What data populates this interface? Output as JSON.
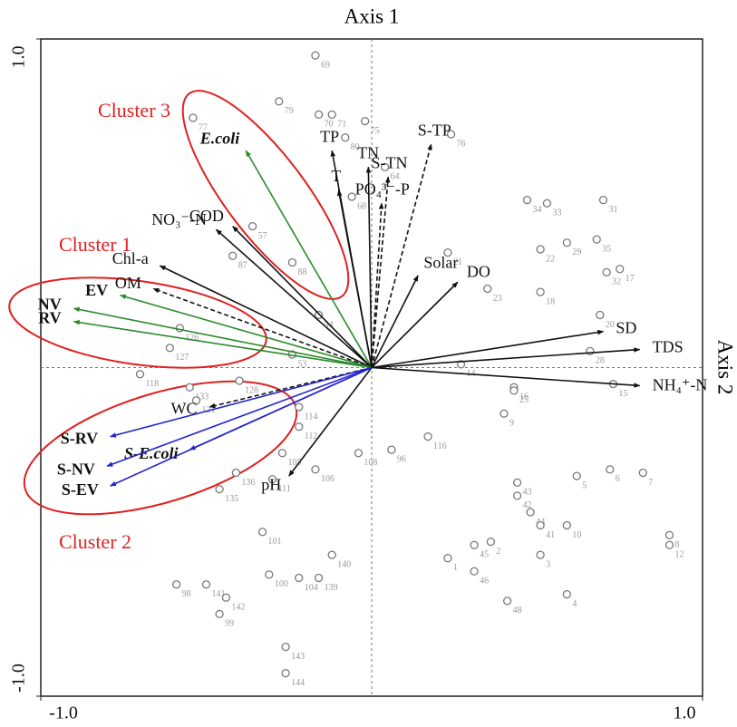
{
  "chart_data": {
    "type": "biplot",
    "x_axis_label": "Axis 1",
    "y_axis_label": "Axis 2",
    "xlim": [
      -1,
      1
    ],
    "ylim": [
      -1,
      1
    ],
    "xticks": [
      {
        "value": -1,
        "label": "-1.0"
      },
      {
        "value": 1,
        "label": "1.0"
      }
    ],
    "yticks": [
      {
        "value": -1,
        "label": "-1.0"
      },
      {
        "value": 1,
        "label": "1.0"
      }
    ],
    "clusters": [
      {
        "name": "Cluster 3",
        "color": "#e02020"
      },
      {
        "name": "Cluster 1",
        "color": "#e02020"
      },
      {
        "name": "Cluster 2",
        "color": "#e02020"
      }
    ],
    "vectors": [
      {
        "name": "E.coli",
        "x": -0.38,
        "y": 0.66,
        "color": "#2a8a2a",
        "weight": "bold-italic"
      },
      {
        "name": "COD",
        "x": -0.42,
        "y": 0.43,
        "color": "#111111"
      },
      {
        "name": "NO₃⁻-N",
        "x": -0.47,
        "y": 0.42,
        "color": "#111111"
      },
      {
        "name": "Chl-a",
        "x": -0.64,
        "y": 0.31,
        "color": "#111111"
      },
      {
        "name": "OM",
        "x": -0.66,
        "y": 0.24,
        "color": "#111111",
        "dashed": true
      },
      {
        "name": "EV",
        "x": -0.76,
        "y": 0.22,
        "color": "#2a8a2a",
        "weight": "bold"
      },
      {
        "name": "NV",
        "x": -0.9,
        "y": 0.18,
        "color": "#2a8a2a",
        "weight": "bold"
      },
      {
        "name": "RV",
        "x": -0.9,
        "y": 0.14,
        "color": "#2a8a2a",
        "weight": "bold"
      },
      {
        "name": "TP",
        "x": -0.12,
        "y": 0.66,
        "color": "#111111"
      },
      {
        "name": "T",
        "x": -0.1,
        "y": 0.54,
        "color": "#111111"
      },
      {
        "name": "TN",
        "x": -0.01,
        "y": 0.61,
        "color": "#111111"
      },
      {
        "name": "S-TN",
        "x": 0.05,
        "y": 0.58,
        "color": "#111111",
        "dashed": true
      },
      {
        "name": "S-TP",
        "x": 0.18,
        "y": 0.68,
        "color": "#111111",
        "dashed": true
      },
      {
        "name": "PO₄³⁻-P",
        "x": 0.03,
        "y": 0.5,
        "color": "#111111",
        "dashed": true
      },
      {
        "name": "Solar",
        "x": 0.14,
        "y": 0.28,
        "color": "#111111"
      },
      {
        "name": "DO",
        "x": 0.26,
        "y": 0.26,
        "color": "#111111"
      },
      {
        "name": "SD",
        "x": 0.7,
        "y": 0.11,
        "color": "#111111"
      },
      {
        "name": "TDS",
        "x": 0.81,
        "y": 0.055,
        "color": "#111111"
      },
      {
        "name": "NH₄⁺-N",
        "x": 0.81,
        "y": -0.055,
        "color": "#111111"
      },
      {
        "name": "WC",
        "x": -0.49,
        "y": -0.12,
        "color": "#111111",
        "dashed": true
      },
      {
        "name": "pH",
        "x": -0.25,
        "y": -0.33,
        "color": "#111111"
      },
      {
        "name": "S-E.coli",
        "x": -0.55,
        "y": -0.25,
        "color": "#2323d0",
        "weight": "bold-italic"
      },
      {
        "name": "S-RV",
        "x": -0.79,
        "y": -0.21,
        "color": "#2323d0",
        "weight": "bold"
      },
      {
        "name": "S-NV",
        "x": -0.8,
        "y": -0.3,
        "color": "#2323d0",
        "weight": "bold"
      },
      {
        "name": "S-EV",
        "x": -0.79,
        "y": -0.36,
        "color": "#2323d0",
        "weight": "bold"
      }
    ],
    "points": {
      "labels": [
        "69",
        "79",
        "77",
        "70",
        "71",
        "75",
        "80",
        "76",
        "64",
        "68",
        "34",
        "33",
        "31",
        "21",
        "22",
        "29",
        "35",
        "32",
        "17",
        "23",
        "18",
        "28",
        "20",
        "15",
        "16",
        "25",
        "9",
        "14",
        "96",
        "116",
        "108",
        "106",
        "112",
        "114",
        "105",
        "111",
        "1",
        "45",
        "2",
        "46",
        "48",
        "4",
        "3",
        "44",
        "42",
        "43",
        "41",
        "10",
        "5",
        "6",
        "7",
        "8",
        "12",
        "118",
        "127",
        "126",
        "133",
        "121",
        "128",
        "135",
        "136",
        "101",
        "140",
        "100",
        "104",
        "139",
        "141",
        "98",
        "142",
        "99",
        "143",
        "144",
        "87",
        "88",
        "57",
        "54",
        "53"
      ],
      "x": [
        -0.17,
        -0.28,
        -0.54,
        -0.16,
        -0.12,
        -0.02,
        -0.08,
        0.24,
        0.04,
        -0.06,
        0.47,
        0.53,
        0.7,
        0.23,
        0.51,
        0.59,
        0.68,
        0.71,
        0.75,
        0.35,
        0.51,
        0.66,
        0.69,
        0.73,
        0.43,
        0.43,
        0.4,
        0.27,
        0.06,
        0.17,
        -0.04,
        -0.17,
        -0.22,
        -0.22,
        -0.27,
        -0.3,
        0.23,
        0.31,
        0.36,
        0.31,
        0.41,
        0.59,
        0.51,
        0.48,
        0.44,
        0.44,
        0.51,
        0.59,
        0.62,
        0.72,
        0.82,
        0.9,
        0.9,
        -0.7,
        -0.61,
        -0.58,
        -0.55,
        -0.53,
        -0.4,
        -0.46,
        -0.41,
        -0.33,
        -0.12,
        -0.31,
        -0.22,
        -0.16,
        -0.5,
        -0.59,
        -0.44,
        -0.46,
        -0.26,
        -0.26,
        -0.42,
        -0.24,
        -0.36,
        -0.16,
        -0.24
      ],
      "y": [
        0.95,
        0.81,
        0.76,
        0.77,
        0.77,
        0.75,
        0.7,
        0.71,
        0.61,
        0.52,
        0.51,
        0.5,
        0.51,
        0.35,
        0.36,
        0.38,
        0.39,
        0.29,
        0.3,
        0.24,
        0.23,
        0.05,
        0.16,
        -0.05,
        -0.06,
        -0.07,
        -0.14,
        0.01,
        -0.25,
        -0.21,
        -0.26,
        -0.31,
        -0.18,
        -0.12,
        -0.26,
        -0.34,
        -0.58,
        -0.54,
        -0.53,
        -0.62,
        -0.71,
        -0.69,
        -0.57,
        -0.44,
        -0.39,
        -0.35,
        -0.48,
        -0.48,
        -0.33,
        -0.31,
        -0.32,
        -0.51,
        -0.54,
        -0.02,
        0.06,
        0.12,
        -0.06,
        -0.1,
        -0.04,
        -0.37,
        -0.32,
        -0.5,
        -0.57,
        -0.63,
        -0.64,
        -0.64,
        -0.66,
        -0.66,
        -0.7,
        -0.75,
        -0.85,
        -0.93,
        0.34,
        0.32,
        0.43,
        0.16,
        0.04
      ]
    }
  }
}
